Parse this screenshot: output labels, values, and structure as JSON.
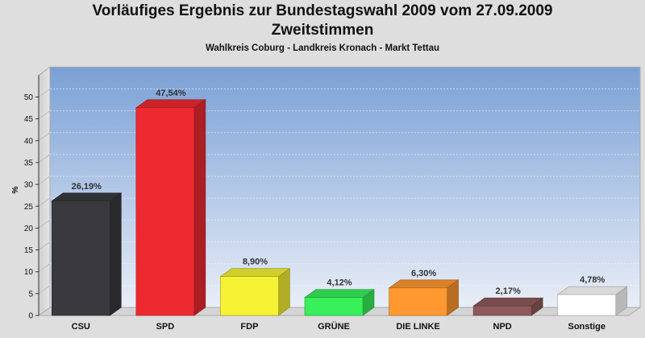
{
  "chart_data": {
    "type": "bar",
    "title": "Vorläufiges Ergebnis zur Bundestagswahl 2009 vom 27.09.2009",
    "title_line2": "Zweitstimmen",
    "subtitle": "Wahlkreis Coburg - Landkreis Kronach - Markt Tettau",
    "xlabel": "",
    "ylabel": "%",
    "ylim": [
      0,
      55
    ],
    "yticks": [
      0,
      5,
      10,
      15,
      20,
      25,
      30,
      35,
      40,
      45,
      50
    ],
    "categories": [
      "CSU",
      "SPD",
      "FDP",
      "GRÜNE",
      "DIE LINKE",
      "NPD",
      "Sonstige"
    ],
    "values": [
      26.19,
      47.54,
      8.9,
      4.12,
      6.3,
      2.17,
      4.78
    ],
    "value_labels": [
      "26,19%",
      "47,54%",
      "8,90%",
      "4,12%",
      "6,30%",
      "2,17%",
      "4,78%"
    ],
    "colors": [
      "#3a3a3e",
      "#ee2a31",
      "#f6f234",
      "#37f05a",
      "#ff9830",
      "#8e5a5c",
      "#ffffff"
    ],
    "grid": true,
    "legend": "none"
  }
}
